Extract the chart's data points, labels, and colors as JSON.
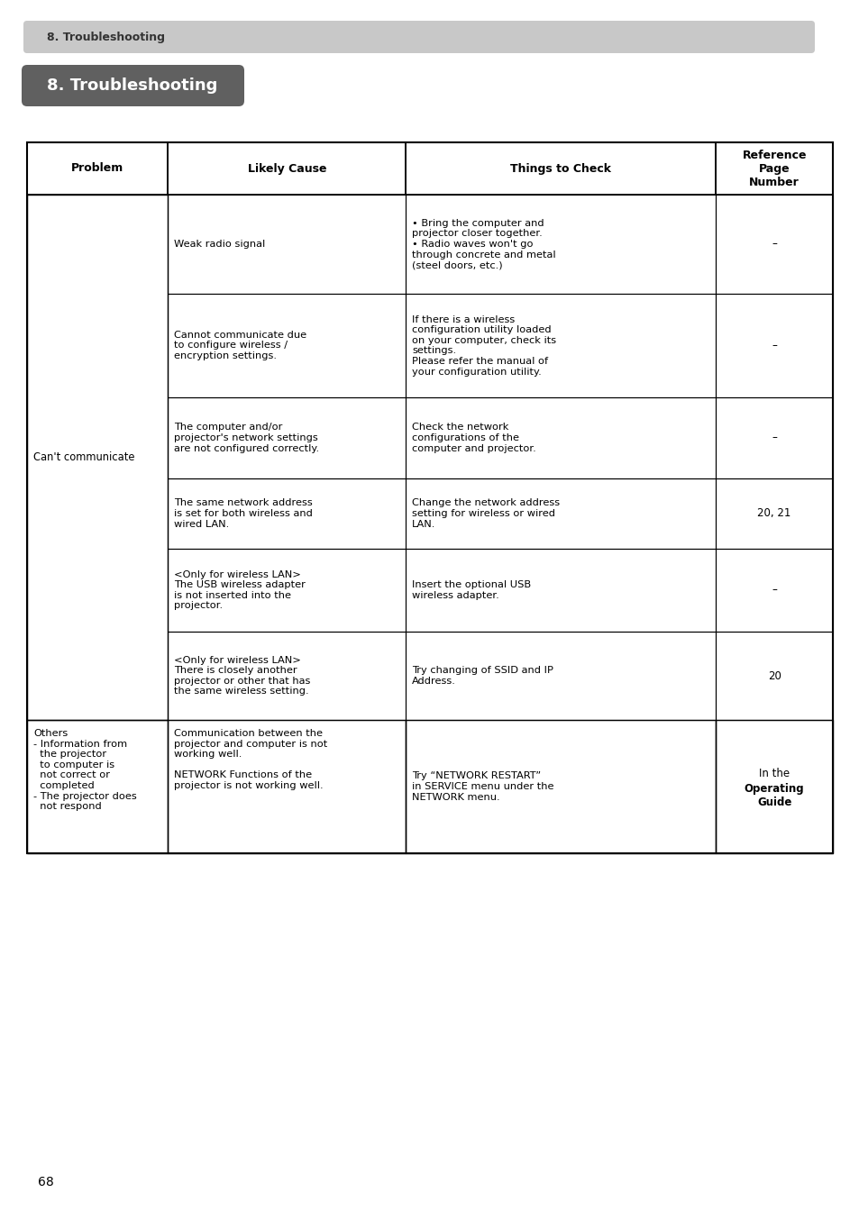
{
  "page_title_bar": "8. Troubleshooting",
  "section_title": "8. Troubleshooting",
  "page_number": "68",
  "header_bg": "#c8c8c8",
  "section_title_bg": "#606060",
  "section_title_color": "#ffffff",
  "table_header": [
    "Problem",
    "Likely Cause",
    "Things to Check",
    "Reference\nPage\nNumber"
  ],
  "rows": [
    {
      "problem": "Can't communicate",
      "problem_rowspan": 6,
      "cause": "Weak radio signal",
      "things": "• Bring the computer and\nprojector closer together.\n• Radio waves won't go\nthrough concrete and metal\n(steel doors, etc.)",
      "ref": "–"
    },
    {
      "problem": "",
      "cause": "Cannot communicate due\nto configure wireless /\nencryption settings.",
      "things": "If there is a wireless\nconfiguration utility loaded\non your computer, check its\nsettings.\nPlease refer the manual of\nyour configuration utility.",
      "ref": "–"
    },
    {
      "problem": "",
      "cause": "The computer and/or\nprojector's network settings\nare not configured correctly.",
      "things": "Check the network\nconfigurations of the\ncomputer and projector.",
      "ref": "–"
    },
    {
      "problem": "",
      "cause": "The same network address\nis set for both wireless and\nwired LAN.",
      "things": "Change the network address\nsetting for wireless or wired\nLAN.",
      "ref": "20, 21"
    },
    {
      "problem": "",
      "cause": "<Only for wireless LAN>\nThe USB wireless adapter\nis not inserted into the\nprojector.",
      "things": "Insert the optional USB\nwireless adapter.",
      "ref": "–"
    },
    {
      "problem": "",
      "cause": "<Only for wireless LAN>\nThere is closely another\nprojector or other that has\nthe same wireless setting.",
      "things": "Try changing of SSID and IP\nAddress.",
      "ref": "20"
    },
    {
      "problem": "Others\n- Information from\n  the projector\n  to computer is\n  not correct or\n  completed\n- The projector does\n  not respond",
      "problem_rowspan": 1,
      "cause": "Communication between the\nprojector and computer is not\nworking well.\n\nNETWORK Functions of the\nprojector is not working well.",
      "things": "Try “NETWORK RESTART”\nin SERVICE menu under the\nNETWORK menu.",
      "ref_line1": "In the",
      "ref_line2": "Operating\nGuide"
    }
  ]
}
